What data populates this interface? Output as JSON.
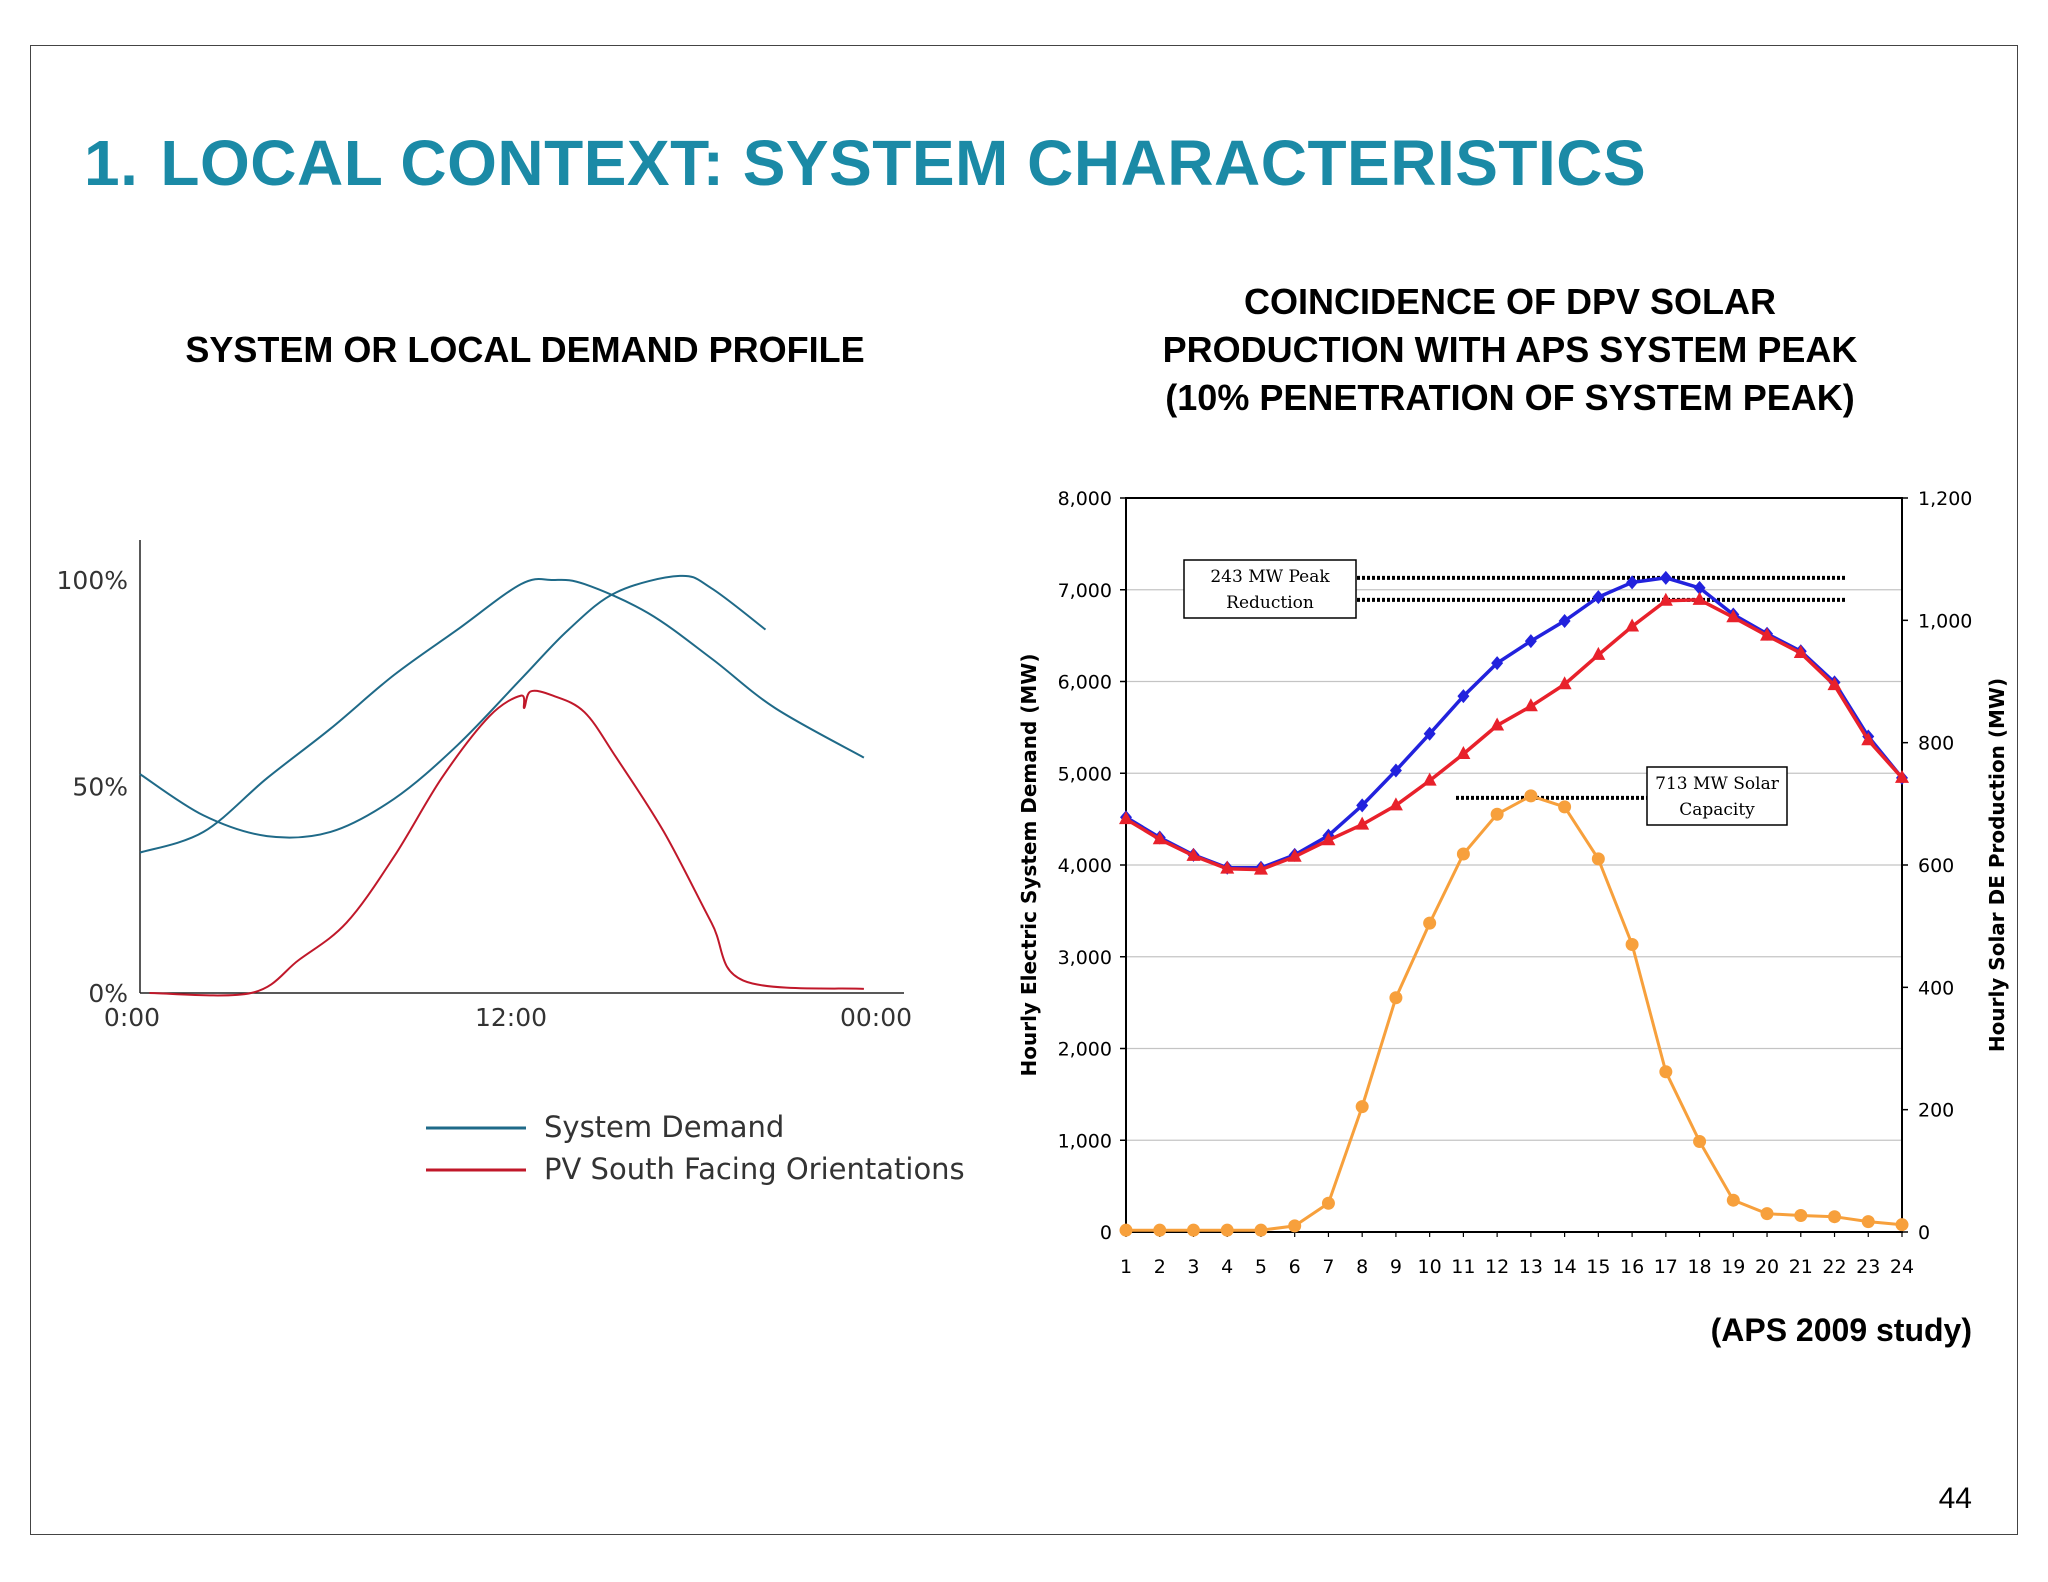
{
  "slide": {
    "title_number": "1.",
    "title_text": "LOCAL CONTEXT: SYSTEM CHARACTERISTICS",
    "left_title": "SYSTEM OR LOCAL DEMAND PROFILE",
    "right_title": "COINCIDENCE OF DPV SOLAR\nPRODUCTION WITH APS SYSTEM PEAK\n(10% PENETRATION OF SYSTEM PEAK)",
    "source_note": "(APS 2009 study)",
    "page_number": "44"
  },
  "chart_data": [
    {
      "type": "line",
      "x_ticks": [
        "0:00",
        "12:00",
        "00:00"
      ],
      "y_ticks": [
        "0%",
        "50%",
        "100%"
      ],
      "x_unit": "hours",
      "xlim": [
        0,
        24
      ],
      "ylim": [
        0,
        100
      ],
      "series": [
        {
          "name": "System Demand",
          "color": "#1f6a88",
          "x": [
            0,
            2,
            4,
            6,
            8,
            10,
            12,
            13.5,
            15,
            17,
            18,
            19.7
          ],
          "values": [
            53,
            43,
            38,
            39,
            47,
            60,
            76,
            88,
            97,
            101,
            98,
            88
          ]
        },
        {
          "name": "System Demand",
          "color": "#1f6a88",
          "x": [
            0,
            2,
            4,
            6,
            8,
            10,
            12,
            13,
            14,
            16,
            18,
            20,
            22.8
          ],
          "values": [
            34,
            39,
            52,
            64,
            77,
            88,
            99,
            100,
            99,
            92,
            81,
            69,
            57
          ]
        },
        {
          "name": "PV South Facing Orientations",
          "color": "#c0182a",
          "x": [
            0.3,
            3.5,
            5,
            6.5,
            8,
            9.5,
            11,
            12,
            12.1,
            12.3,
            13,
            14,
            15,
            16.5,
            18,
            19,
            22.8
          ],
          "values": [
            0,
            0,
            8,
            17,
            33,
            52,
            67,
            72,
            69,
            73,
            72,
            68,
            57,
            39,
            17,
            3,
            1
          ]
        }
      ],
      "legend": [
        "System Demand",
        "PV South Facing Orientations"
      ],
      "legend_position": "bottom-right"
    },
    {
      "type": "line",
      "x": [
        1,
        2,
        3,
        4,
        5,
        6,
        7,
        8,
        9,
        10,
        11,
        12,
        13,
        14,
        15,
        16,
        17,
        18,
        19,
        20,
        21,
        22,
        23,
        24
      ],
      "ylim_left": [
        0,
        8000
      ],
      "ylim_right": [
        0,
        1200
      ],
      "y_ticks_left": [
        "0",
        "1,000",
        "2,000",
        "3,000",
        "4,000",
        "5,000",
        "6,000",
        "7,000",
        "8,000"
      ],
      "y_ticks_right": [
        "0",
        "200",
        "400",
        "600",
        "800",
        "1,000",
        "1,200"
      ],
      "ylabel_left": "Hourly Electric System Demand (MW)",
      "ylabel_right": "Hourly Solar DE Production (MW)",
      "grid": true,
      "series": [
        {
          "color": "#2222dd",
          "marker": "diamond",
          "axis": "left",
          "values": [
            4520,
            4300,
            4110,
            3970,
            3970,
            4110,
            4320,
            4650,
            5030,
            5430,
            5840,
            6200,
            6440,
            6660,
            6920,
            7080,
            7130,
            7020,
            6730,
            6520,
            6330,
            5990,
            5400,
            4950
          ]
        },
        {
          "color": "#e8212b",
          "marker": "triangle",
          "axis": "left",
          "values": [
            4500,
            4280,
            4100,
            3960,
            3950,
            4090,
            4270,
            4440,
            4650,
            4920,
            5210,
            5520,
            5730,
            5970,
            6290,
            6600,
            6880,
            6890,
            6700,
            6500,
            6310,
            5960,
            5360,
            4950
          ]
        },
        {
          "color": "#f7a03c",
          "marker": "circle",
          "axis": "right",
          "values": [
            3,
            3,
            3,
            3,
            3,
            10,
            47,
            205,
            383,
            505,
            618,
            683,
            713,
            695,
            610,
            470,
            262,
            148,
            52,
            30,
            27,
            25,
            17,
            12
          ]
        }
      ],
      "annotations": [
        {
          "text_line1": "243 MW Peak",
          "text_line2": "Reduction"
        },
        {
          "text_line1": "713 MW Solar",
          "text_line2": "Capacity"
        }
      ]
    }
  ]
}
